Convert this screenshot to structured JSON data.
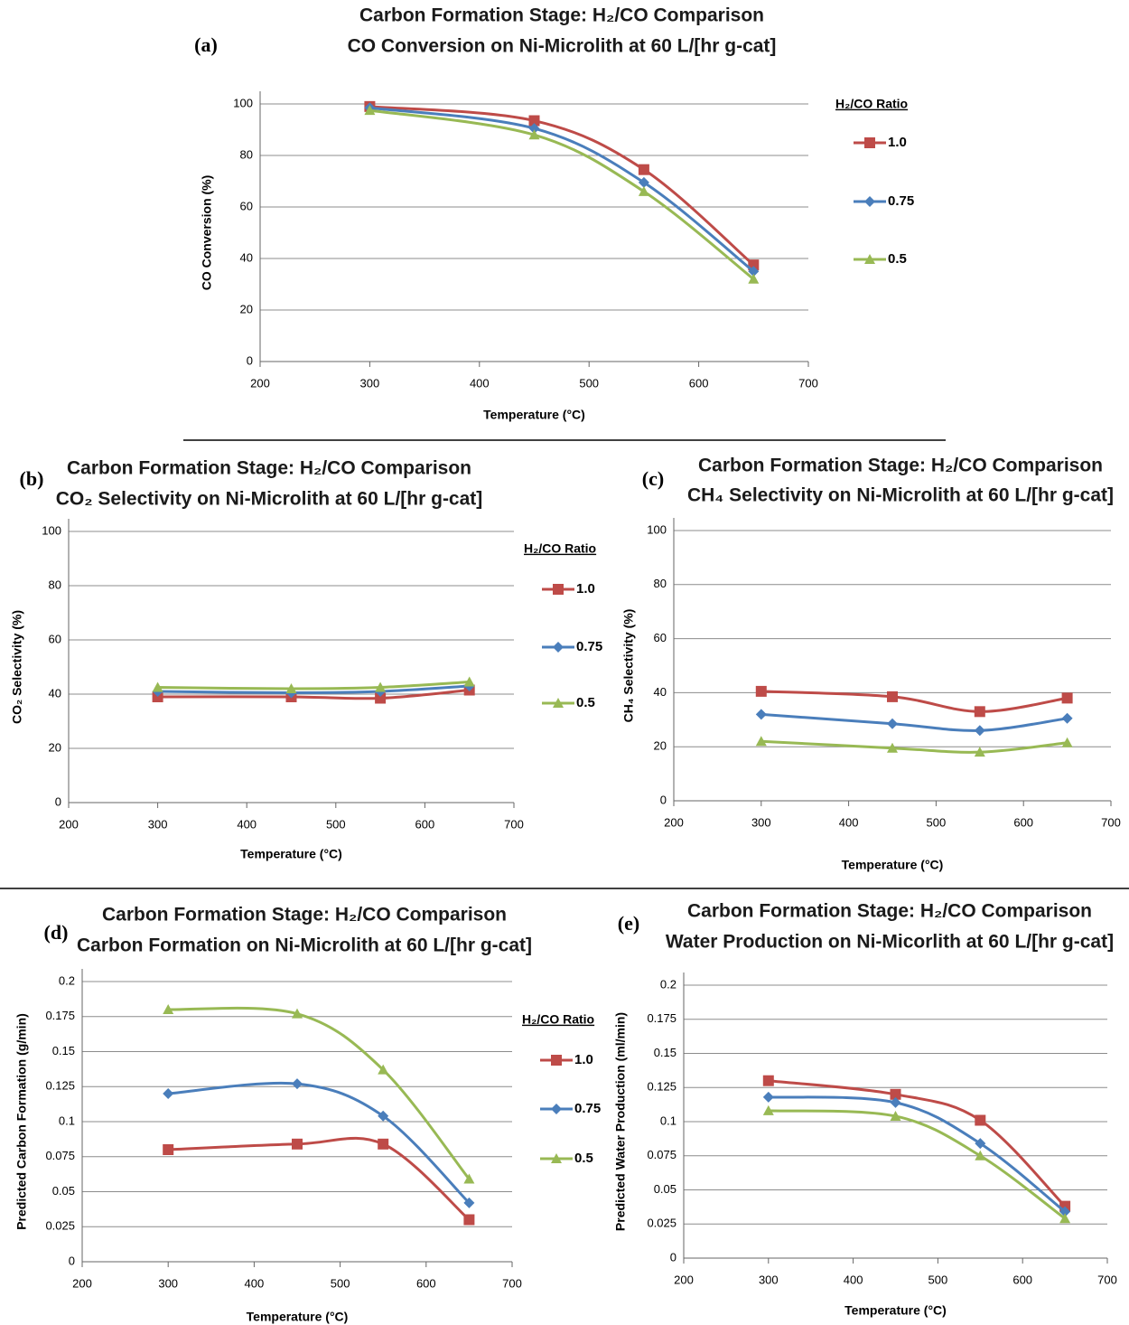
{
  "chart_data": [
    {
      "type": "line",
      "label": "(a)",
      "title": "Carbon Formation Stage: H₂/CO Comparison",
      "subtitle": "CO Conversion on Ni-Microlith at 60 L/[hr g-cat]",
      "x_label": "Temperature (°C)",
      "y_label": "CO Conversion (%)",
      "legend_title": "H₂/CO Ratio",
      "x": [
        300,
        450,
        550,
        650
      ],
      "xlim": [
        200,
        700
      ],
      "xticks": [
        200,
        300,
        400,
        500,
        600,
        700
      ],
      "ylim": [
        0,
        100
      ],
      "yticks": [
        0,
        20,
        40,
        60,
        80,
        100
      ],
      "grid": true,
      "smooth": true,
      "series": [
        {
          "name": "1.0",
          "color": "#be4b48",
          "marker": "square",
          "values": [
            99,
            93.5,
            74.5,
            37.5
          ]
        },
        {
          "name": "0.75",
          "color": "#4a7ebb",
          "marker": "diamond",
          "values": [
            98.5,
            90.5,
            69.5,
            35
          ]
        },
        {
          "name": "0.5",
          "color": "#98b954",
          "marker": "triangle",
          "values": [
            97.5,
            88,
            66,
            32
          ]
        }
      ]
    },
    {
      "type": "line",
      "label": "(b)",
      "title": "Carbon Formation Stage: H₂/CO Comparison",
      "subtitle": "CO₂ Selectivity on Ni-Microlith at 60 L/[hr g-cat]",
      "x_label": "Temperature (°C)",
      "y_label": "CO₂ Selectivity (%)",
      "legend_title": "H₂/CO Ratio",
      "x": [
        300,
        450,
        550,
        650
      ],
      "xlim": [
        200,
        700
      ],
      "xticks": [
        200,
        300,
        400,
        500,
        600,
        700
      ],
      "ylim": [
        0,
        100
      ],
      "yticks": [
        0,
        20,
        40,
        60,
        80,
        100
      ],
      "grid": true,
      "smooth": true,
      "series": [
        {
          "name": "1.0",
          "color": "#be4b48",
          "marker": "square",
          "values": [
            39,
            39,
            38.5,
            41.5
          ]
        },
        {
          "name": "0.75",
          "color": "#4a7ebb",
          "marker": "diamond",
          "values": [
            41,
            40.5,
            41,
            43
          ]
        },
        {
          "name": "0.5",
          "color": "#98b954",
          "marker": "triangle",
          "values": [
            42.5,
            42,
            42.5,
            44.5
          ]
        }
      ]
    },
    {
      "type": "line",
      "label": "(c)",
      "title": "Carbon Formation Stage: H₂/CO Comparison",
      "subtitle": "CH₄ Selectivity on Ni-Microlith at 60 L/[hr g-cat]",
      "x_label": "Temperature (°C)",
      "y_label": "CH₄ Selectivity (%)",
      "x": [
        300,
        450,
        550,
        650
      ],
      "xlim": [
        200,
        700
      ],
      "xticks": [
        200,
        300,
        400,
        500,
        600,
        700
      ],
      "ylim": [
        0,
        100
      ],
      "yticks": [
        0,
        20,
        40,
        60,
        80,
        100
      ],
      "grid": true,
      "smooth": true,
      "series": [
        {
          "color": "#be4b48",
          "marker": "square",
          "values": [
            40.5,
            38.5,
            33,
            38
          ]
        },
        {
          "color": "#4a7ebb",
          "marker": "diamond",
          "values": [
            32,
            28.5,
            26,
            30.5
          ]
        },
        {
          "color": "#98b954",
          "marker": "triangle",
          "values": [
            22,
            19.5,
            18,
            21.5
          ]
        }
      ]
    },
    {
      "type": "line",
      "label": "(d)",
      "title": "Carbon Formation Stage: H₂/CO Comparison",
      "subtitle": "Carbon Formation on Ni-Microlith at 60 L/[hr g-cat]",
      "x_label": "Temperature (°C)",
      "y_label": "Predicted Carbon Formation (g/min)",
      "legend_title": "H₂/CO Ratio",
      "x": [
        300,
        450,
        550,
        650
      ],
      "xlim": [
        200,
        700
      ],
      "xticks": [
        200,
        300,
        400,
        500,
        600,
        700
      ],
      "ylim": [
        0,
        0.2
      ],
      "yticks": [
        0,
        0.025,
        0.05,
        0.075,
        0.1,
        0.125,
        0.15,
        0.175,
        0.2
      ],
      "grid": true,
      "smooth": true,
      "series": [
        {
          "name": "1.0",
          "color": "#be4b48",
          "marker": "square",
          "values": [
            0.08,
            0.084,
            0.084,
            0.03
          ]
        },
        {
          "name": "0.75",
          "color": "#4a7ebb",
          "marker": "diamond",
          "values": [
            0.12,
            0.127,
            0.104,
            0.042
          ]
        },
        {
          "name": "0.5",
          "color": "#98b954",
          "marker": "triangle",
          "values": [
            0.18,
            0.177,
            0.137,
            0.059
          ]
        }
      ]
    },
    {
      "type": "line",
      "label": "(e)",
      "title": "Carbon Formation Stage: H₂/CO Comparison",
      "subtitle": "Water Production on Ni-Micorlith at 60 L/[hr g-cat]",
      "x_label": "Temperature (°C)",
      "y_label": "Predicted Water Production (ml/min)",
      "x": [
        300,
        450,
        550,
        650
      ],
      "xlim": [
        200,
        700
      ],
      "xticks": [
        200,
        300,
        400,
        500,
        600,
        700
      ],
      "ylim": [
        0,
        0.2
      ],
      "yticks": [
        0,
        0.025,
        0.05,
        0.075,
        0.1,
        0.125,
        0.15,
        0.175,
        0.2
      ],
      "grid": true,
      "smooth": true,
      "series": [
        {
          "color": "#be4b48",
          "marker": "square",
          "values": [
            0.13,
            0.12,
            0.101,
            0.038
          ]
        },
        {
          "color": "#4a7ebb",
          "marker": "diamond",
          "values": [
            0.118,
            0.114,
            0.084,
            0.034
          ]
        },
        {
          "color": "#98b954",
          "marker": "triangle",
          "values": [
            0.108,
            0.104,
            0.075,
            0.029
          ]
        }
      ]
    }
  ]
}
